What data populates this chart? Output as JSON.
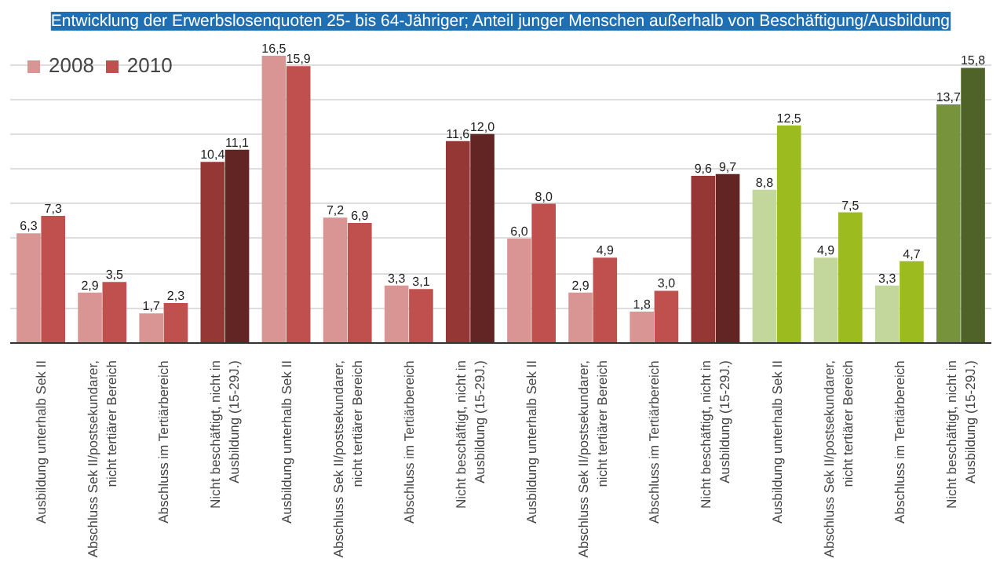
{
  "chart_data": {
    "type": "bar",
    "title": "Entwicklung der Erwerbslosenquoten 25- bis 64-Jähriger; Anteil junger Menschen außerhalb von Beschäftigung/Ausbildung",
    "categories": [
      "Ausbildung unterhalb Sek II",
      "Abschluss Sek II/postsekundarer,\nnicht tertiärer Bereich",
      "Abschluss im Tertiärbereich",
      "Nicht beschäftigt, nicht in\nAusbildung (15-29J.)",
      "Ausbildung unterhalb Sek II",
      "Abschluss Sek II/postsekundarer,\nnicht tertiärer Bereich",
      "Abschluss im Tertiärbereich",
      "Nicht beschäftigt, nicht in\nAusbildung (15-29J.)",
      "Ausbildung unterhalb Sek II",
      "Abschluss Sek II/postsekundarer,\nnicht tertiärer Bereich",
      "Abschluss im Tertiärbereich",
      "Nicht beschäftigt, nicht in\nAusbildung (15-29J.)",
      "Ausbildung unterhalb Sek II",
      "Abschluss Sek II/postsekundarer,\nnicht tertiärer Bereich",
      "Abschluss im Tertiärbereich",
      "Nicht beschäftigt, nicht in\nAusbildung (15-29J.)"
    ],
    "series": [
      {
        "name": "2008",
        "color": "#d99594",
        "colors": [
          "#d99594",
          "#d99594",
          "#d99594",
          "#953735",
          "#d99594",
          "#d99594",
          "#d99594",
          "#953735",
          "#d99594",
          "#d99594",
          "#d99594",
          "#953735",
          "#c3d69b",
          "#c3d69b",
          "#c3d69b",
          "#77933c"
        ],
        "values": [
          6.3,
          2.9,
          1.7,
          10.4,
          16.5,
          7.2,
          3.3,
          11.6,
          6.0,
          2.9,
          1.8,
          9.6,
          8.8,
          4.9,
          3.3,
          13.7
        ],
        "value_labels": [
          "6,3",
          "2,9",
          "1,7",
          "10,4",
          "16,5",
          "7,2",
          "3,3",
          "11,6",
          "6,0",
          "2,9",
          "1,8",
          "9,6",
          "8,8",
          "4,9",
          "3,3",
          "13,7"
        ]
      },
      {
        "name": "2010",
        "color": "#c0504d",
        "colors": [
          "#c0504d",
          "#c0504d",
          "#c0504d",
          "#632523",
          "#c0504d",
          "#c0504d",
          "#c0504d",
          "#632523",
          "#c0504d",
          "#c0504d",
          "#c0504d",
          "#632523",
          "#9bbb1f",
          "#9bbb1f",
          "#9bbb1f",
          "#4f6228"
        ],
        "values": [
          7.3,
          3.5,
          2.3,
          11.1,
          15.9,
          6.9,
          3.1,
          12.0,
          8.0,
          4.9,
          3.0,
          9.7,
          12.5,
          7.5,
          4.7,
          15.8
        ],
        "value_labels": [
          "7,3",
          "3,5",
          "2,3",
          "11,1",
          "15,9",
          "6,9",
          "3,1",
          "12,0",
          "8,0",
          "4,9",
          "3,0",
          "9,7",
          "12,5",
          "7,5",
          "4,7",
          "15,8"
        ]
      }
    ],
    "yticks": [
      {
        "value": 0,
        "label": null
      },
      {
        "value": 2,
        "label": null
      },
      {
        "value": 4,
        "label": null
      },
      {
        "value": 6,
        "label": null
      },
      {
        "value": 8,
        "label": null
      },
      {
        "value": 10,
        "label": null
      },
      {
        "value": 12,
        "label": null
      },
      {
        "value": 14,
        "label": null
      },
      {
        "value": 16,
        "label": null
      }
    ],
    "grid": "y",
    "legend": "top left",
    "tick_labels": "x"
  }
}
